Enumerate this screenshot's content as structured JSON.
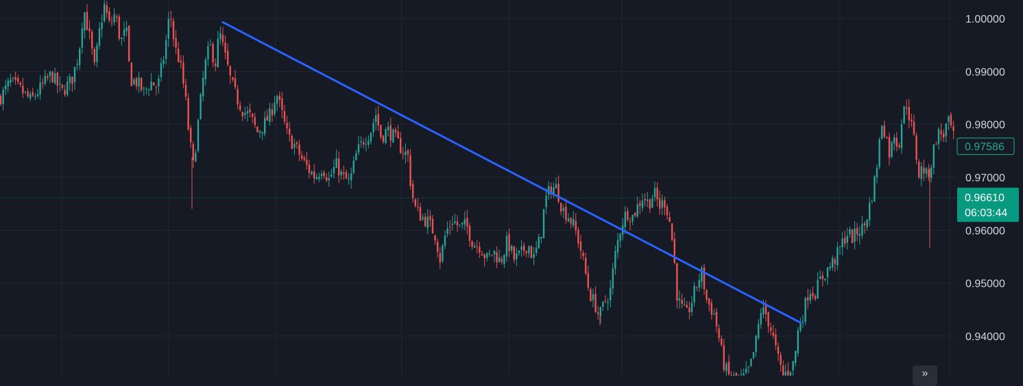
{
  "chart_data": {
    "type": "candlestick",
    "instrument_note": "",
    "y_axis": {
      "position": "right",
      "ticks": [
        "1.00000",
        "0.99000",
        "0.98000",
        "0.97000",
        "0.96000",
        "0.95000",
        "0.94000"
      ],
      "tick_values": [
        1.0,
        0.99,
        0.98,
        0.97,
        0.96,
        0.95,
        0.94
      ],
      "ylim": [
        0.9325,
        1.0035
      ]
    },
    "grid": true,
    "colors": {
      "background": "#161a25",
      "grid": "#232734",
      "up": "#26a69a",
      "down": "#ef5350",
      "trendline": "#2962ff",
      "current_price_bg": "#089981",
      "last_tag_border": "#22ab94",
      "axis_text": "#d1d4dc"
    },
    "current_price": {
      "price_label": "0.96610",
      "countdown": "06:03:44",
      "value": 0.9661
    },
    "secondary_price_tag": {
      "label": "0.97586",
      "value": 0.97586
    },
    "close_path": [
      [
        0,
        0.985
      ],
      [
        15,
        0.988
      ],
      [
        30,
        0.9865
      ],
      [
        45,
        0.9845
      ],
      [
        60,
        0.987
      ],
      [
        75,
        0.9895
      ],
      [
        90,
        0.986
      ],
      [
        105,
        0.9885
      ],
      [
        115,
        0.9935
      ],
      [
        122,
        1.002
      ],
      [
        130,
        0.997
      ],
      [
        138,
        0.9905
      ],
      [
        145,
        0.9975
      ],
      [
        152,
        1.0025
      ],
      [
        160,
        0.9985
      ],
      [
        168,
        1.001
      ],
      [
        176,
        0.9955
      ],
      [
        184,
        0.998
      ],
      [
        190,
        0.9885
      ],
      [
        200,
        0.988
      ],
      [
        210,
        0.986
      ],
      [
        220,
        0.988
      ],
      [
        230,
        0.987
      ],
      [
        240,
        0.9935
      ],
      [
        248,
        1.0015
      ],
      [
        255,
        0.9945
      ],
      [
        262,
        0.992
      ],
      [
        270,
        0.9855
      ],
      [
        276,
        0.9775
      ],
      [
        282,
        0.972
      ],
      [
        290,
        0.9815
      ],
      [
        298,
        0.9905
      ],
      [
        306,
        0.995
      ],
      [
        314,
        0.9915
      ],
      [
        320,
        0.9975
      ],
      [
        328,
        0.993
      ],
      [
        336,
        0.9885
      ],
      [
        345,
        0.985
      ],
      [
        355,
        0.9825
      ],
      [
        365,
        0.9815
      ],
      [
        375,
        0.9785
      ],
      [
        385,
        0.98
      ],
      [
        395,
        0.982
      ],
      [
        403,
        0.986
      ],
      [
        412,
        0.9815
      ],
      [
        420,
        0.9775
      ],
      [
        430,
        0.976
      ],
      [
        440,
        0.9735
      ],
      [
        450,
        0.9715
      ],
      [
        460,
        0.97
      ],
      [
        470,
        0.972
      ],
      [
        480,
        0.9695
      ],
      [
        490,
        0.9725
      ],
      [
        500,
        0.97
      ],
      [
        510,
        0.969
      ],
      [
        520,
        0.9745
      ],
      [
        530,
        0.977
      ],
      [
        540,
        0.9785
      ],
      [
        548,
        0.982
      ],
      [
        556,
        0.9775
      ],
      [
        565,
        0.979
      ],
      [
        575,
        0.9775
      ],
      [
        585,
        0.9755
      ],
      [
        595,
        0.974
      ],
      [
        600,
        0.9675
      ],
      [
        606,
        0.964
      ],
      [
        615,
        0.9625
      ],
      [
        625,
        0.9615
      ],
      [
        635,
        0.959
      ],
      [
        642,
        0.9545
      ],
      [
        650,
        0.9595
      ],
      [
        660,
        0.962
      ],
      [
        670,
        0.9605
      ],
      [
        680,
        0.961
      ],
      [
        690,
        0.9575
      ],
      [
        700,
        0.957
      ],
      [
        710,
        0.9545
      ],
      [
        720,
        0.956
      ],
      [
        730,
        0.954
      ],
      [
        740,
        0.958
      ],
      [
        750,
        0.9545
      ],
      [
        760,
        0.9555
      ],
      [
        770,
        0.9575
      ],
      [
        778,
        0.9545
      ],
      [
        788,
        0.9585
      ],
      [
        795,
        0.9655
      ],
      [
        803,
        0.968
      ],
      [
        812,
        0.968
      ],
      [
        820,
        0.964
      ],
      [
        830,
        0.9625
      ],
      [
        838,
        0.9605
      ],
      [
        846,
        0.957
      ],
      [
        853,
        0.9525
      ],
      [
        860,
        0.948
      ],
      [
        868,
        0.946
      ],
      [
        874,
        0.9435
      ],
      [
        882,
        0.9465
      ],
      [
        890,
        0.9485
      ],
      [
        898,
        0.956
      ],
      [
        906,
        0.961
      ],
      [
        914,
        0.9635
      ],
      [
        922,
        0.9625
      ],
      [
        930,
        0.9645
      ],
      [
        938,
        0.9665
      ],
      [
        946,
        0.965
      ],
      [
        954,
        0.967
      ],
      [
        962,
        0.9645
      ],
      [
        970,
        0.9655
      ],
      [
        977,
        0.9615
      ],
      [
        982,
        0.9565
      ],
      [
        988,
        0.947
      ],
      [
        995,
        0.945
      ],
      [
        1002,
        0.944
      ],
      [
        1010,
        0.947
      ],
      [
        1018,
        0.9505
      ],
      [
        1024,
        0.952
      ],
      [
        1030,
        0.947
      ],
      [
        1036,
        0.9455
      ],
      [
        1042,
        0.944
      ],
      [
        1048,
        0.94
      ],
      [
        1055,
        0.935
      ],
      [
        1062,
        0.9325
      ],
      [
        1070,
        0.932
      ],
      [
        1078,
        0.9318
      ],
      [
        1086,
        0.9322
      ],
      [
        1094,
        0.934
      ],
      [
        1102,
        0.9385
      ],
      [
        1110,
        0.945
      ],
      [
        1118,
        0.944
      ],
      [
        1126,
        0.9405
      ],
      [
        1134,
        0.936
      ],
      [
        1142,
        0.9325
      ],
      [
        1150,
        0.9335
      ],
      [
        1158,
        0.935
      ],
      [
        1165,
        0.942
      ],
      [
        1172,
        0.9445
      ],
      [
        1180,
        0.949
      ],
      [
        1188,
        0.948
      ],
      [
        1196,
        0.9505
      ],
      [
        1204,
        0.952
      ],
      [
        1212,
        0.9535
      ],
      [
        1220,
        0.955
      ],
      [
        1228,
        0.9575
      ],
      [
        1236,
        0.9595
      ],
      [
        1244,
        0.9585
      ],
      [
        1252,
        0.96
      ],
      [
        1260,
        0.9605
      ],
      [
        1268,
        0.9645
      ],
      [
        1274,
        0.968
      ],
      [
        1280,
        0.9735
      ],
      [
        1286,
        0.9805
      ],
      [
        1292,
        0.978
      ],
      [
        1298,
        0.974
      ],
      [
        1304,
        0.9785
      ],
      [
        1310,
        0.9755
      ],
      [
        1316,
        0.9815
      ],
      [
        1322,
        0.984
      ],
      [
        1328,
        0.9805
      ],
      [
        1334,
        0.9765
      ],
      [
        1340,
        0.9705
      ],
      [
        1346,
        0.972
      ],
      [
        1352,
        0.97
      ],
      [
        1358,
        0.9725
      ],
      [
        1364,
        0.977
      ],
      [
        1370,
        0.9785
      ],
      [
        1376,
        0.978
      ],
      [
        1382,
        0.9805
      ],
      [
        1388,
        0.979
      ],
      [
        1393,
        0.976
      ]
    ],
    "notable_wicks": [
      [
        280,
        0.964
      ],
      [
        1356,
        0.9567
      ],
      [
        875,
        0.942
      ],
      [
        1150,
        0.93
      ]
    ],
    "trendline": {
      "from": [
        325,
        0.9993
      ],
      "to": [
        1168,
        0.9425
      ]
    }
  },
  "ui": {
    "scroll_to_realtime_icon": "double-chevron-right-icon",
    "scroll_glyph": "»"
  }
}
